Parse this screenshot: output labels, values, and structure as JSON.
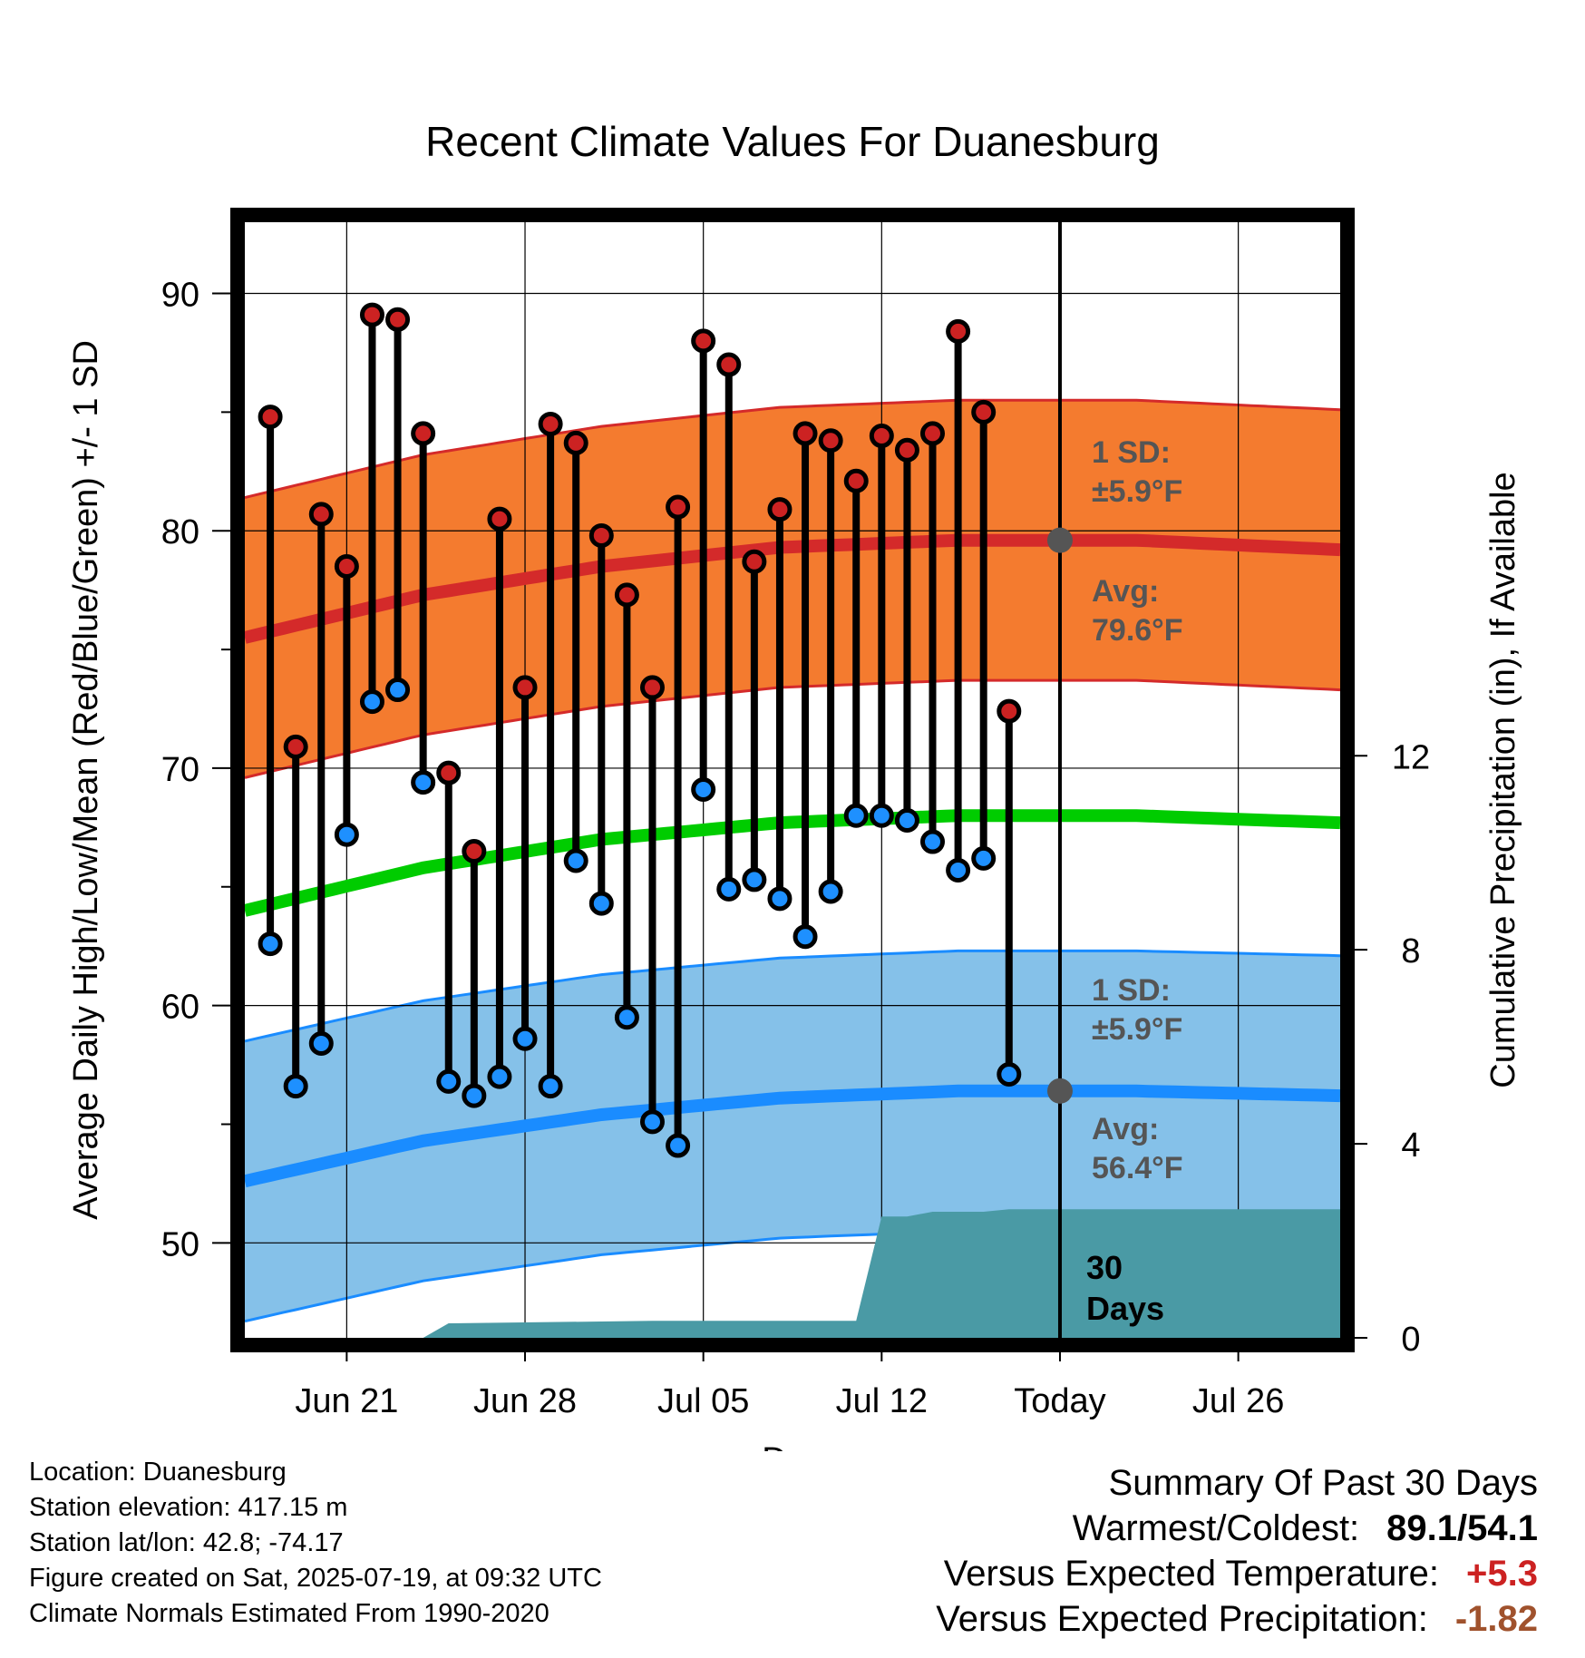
{
  "title": "Recent Climate Values For Duanesburg",
  "colors": {
    "high_band": "#f47b2f",
    "high_line": "#d42a2a",
    "low_band": "#85c1e9",
    "low_line": "#1a8cff",
    "mean_line": "#00cc00",
    "precip": "#4a9aa5",
    "high_dot": "#cc2222",
    "low_dot": "#1e90ff",
    "marker": "#555555",
    "warm_value": "#cc2222",
    "precip_value": "#a0522d"
  },
  "chart_data": {
    "type": "line",
    "title": "Recent Climate Values For Duanesburg",
    "xlabel": "Day",
    "ylabel": "Average Daily High/Low/Mean (Red/Blue/Green) +/- 1 SD",
    "y2label": "Cumulative Precipitation (in), If Available",
    "ylim": [
      46,
      93
    ],
    "y2lim": [
      0,
      23
    ],
    "xlim": [
      "2025-06-17",
      "2025-07-30"
    ],
    "grid": true,
    "x_ticks": [
      {
        "date": "2025-06-21",
        "label": "Jun 21"
      },
      {
        "date": "2025-06-28",
        "label": "Jun 28"
      },
      {
        "date": "2025-07-05",
        "label": "Jul 05"
      },
      {
        "date": "2025-07-12",
        "label": "Jul 12"
      },
      {
        "date": "2025-07-19",
        "label": "Today"
      },
      {
        "date": "2025-07-26",
        "label": "Jul 26"
      }
    ],
    "y_ticks": [
      50,
      60,
      70,
      80,
      90
    ],
    "y2_ticks": [
      0,
      4,
      8,
      12
    ],
    "today": "2025-07-19",
    "observed": {
      "dates": [
        "2025-06-18",
        "2025-06-19",
        "2025-06-20",
        "2025-06-21",
        "2025-06-22",
        "2025-06-23",
        "2025-06-24",
        "2025-06-25",
        "2025-06-26",
        "2025-06-27",
        "2025-06-28",
        "2025-06-29",
        "2025-06-30",
        "2025-07-01",
        "2025-07-02",
        "2025-07-03",
        "2025-07-04",
        "2025-07-05",
        "2025-07-06",
        "2025-07-07",
        "2025-07-08",
        "2025-07-09",
        "2025-07-10",
        "2025-07-11",
        "2025-07-12",
        "2025-07-13",
        "2025-07-14",
        "2025-07-15",
        "2025-07-16",
        "2025-07-17",
        "2025-07-18"
      ],
      "high": [
        84.8,
        70.9,
        80.7,
        78.5,
        89.1,
        88.9,
        84.1,
        69.8,
        66.5,
        80.5,
        73.4,
        84.5,
        83.7,
        79.8,
        77.3,
        73.4,
        81.0,
        88.0,
        87.0,
        78.7,
        80.9,
        84.1,
        83.8,
        82.1,
        84.0,
        83.4,
        84.1,
        88.4,
        85.0,
        72.4,
        null
      ],
      "low": [
        62.6,
        56.6,
        58.4,
        67.2,
        72.8,
        73.3,
        69.4,
        56.8,
        56.2,
        57.0,
        58.6,
        56.6,
        66.1,
        64.3,
        59.5,
        55.1,
        54.1,
        69.1,
        64.9,
        65.3,
        64.5,
        62.9,
        64.8,
        68.0,
        68.0,
        67.8,
        66.9,
        65.7,
        66.2,
        57.1,
        null
      ]
    },
    "normals": {
      "dates": [
        "2025-06-17",
        "2025-06-24",
        "2025-07-01",
        "2025-07-08",
        "2025-07-15",
        "2025-07-22",
        "2025-07-30"
      ],
      "avg_high": [
        75.5,
        77.3,
        78.5,
        79.3,
        79.6,
        79.6,
        79.2
      ],
      "avg_low": [
        52.6,
        54.3,
        55.4,
        56.1,
        56.4,
        56.4,
        56.2
      ],
      "avg_mean": [
        64.0,
        65.8,
        67.0,
        67.7,
        68.0,
        68.0,
        67.7
      ],
      "sd": 5.9
    },
    "precip_cumulative": {
      "dates": [
        "2025-06-17",
        "2025-06-24",
        "2025-06-25",
        "2025-07-03",
        "2025-07-11",
        "2025-07-12",
        "2025-07-13",
        "2025-07-14",
        "2025-07-16",
        "2025-07-17",
        "2025-07-30"
      ],
      "values": [
        0.0,
        0.0,
        0.3,
        0.35,
        0.35,
        2.5,
        2.5,
        2.6,
        2.6,
        2.65,
        2.65
      ]
    },
    "annotations": {
      "high_sd": "1 SD:",
      "high_sd_value": "±5.9°F",
      "high_avg": "Avg:",
      "high_avg_value": "79.6°F",
      "low_sd": "1 SD:",
      "low_sd_value": "±5.9°F",
      "low_avg": "Avg:",
      "low_avg_value": "56.4°F",
      "days_line1": "30",
      "days_line2": "Days"
    }
  },
  "info": {
    "location": "Location: Duanesburg",
    "elevation": "Station elevation: 417.15 m",
    "latlon": "Station lat/lon: 42.8; -74.17",
    "created": "Figure created on Sat, 2025-07-19, at 09:32 UTC",
    "normals": "Climate Normals Estimated From 1990-2020"
  },
  "summary": {
    "heading": "Summary Of Past 30 Days",
    "warmest_label": "Warmest/Coldest:",
    "warmest_value": "89.1/54.1",
    "temp_label": "Versus Expected Temperature:",
    "temp_value": "+5.3",
    "precip_label": "Versus Expected Precipitation:",
    "precip_value": "-1.82"
  }
}
